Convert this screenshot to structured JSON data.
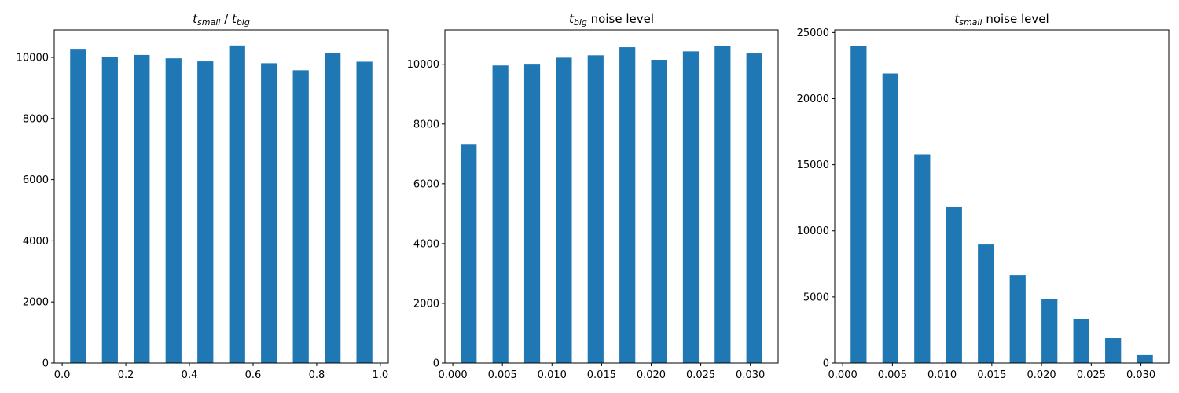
{
  "colors": {
    "bar": "#1f77b4"
  },
  "chart_data": [
    {
      "type": "bar",
      "title_parts": [
        {
          "text": "t",
          "italic": true
        },
        {
          "text": "small",
          "italic": true,
          "sub": true
        },
        {
          "text": " / "
        },
        {
          "text": "t",
          "italic": true
        },
        {
          "text": "big",
          "italic": true,
          "sub": true
        }
      ],
      "xlabel": "",
      "ylabel": "",
      "x": [
        0.05,
        0.15,
        0.25,
        0.35,
        0.45,
        0.55,
        0.65,
        0.75,
        0.85,
        0.95
      ],
      "values": [
        10280,
        10020,
        10080,
        9970,
        9870,
        10390,
        9810,
        9580,
        10150,
        9860
      ],
      "bar_width": 0.05,
      "xlim": [
        -0.025,
        1.025
      ],
      "ylim": [
        0,
        10900
      ],
      "xticks": [
        0.0,
        0.2,
        0.4,
        0.6,
        0.8,
        1.0
      ],
      "xtick_labels": [
        "0.0",
        "0.2",
        "0.4",
        "0.6",
        "0.8",
        "1.0"
      ],
      "yticks": [
        0,
        2000,
        4000,
        6000,
        8000,
        10000
      ],
      "ytick_labels": [
        "0",
        "2000",
        "4000",
        "6000",
        "8000",
        "10000"
      ],
      "grid": false
    },
    {
      "type": "bar",
      "title_parts": [
        {
          "text": "t",
          "italic": true
        },
        {
          "text": "big",
          "italic": true,
          "sub": true
        },
        {
          "text": " noise level"
        }
      ],
      "xlabel": "",
      "ylabel": "",
      "x": [
        0.0016,
        0.0048,
        0.008,
        0.0112,
        0.0144,
        0.0176,
        0.0208,
        0.024,
        0.0272,
        0.0304
      ],
      "values": [
        7330,
        9960,
        9990,
        10220,
        10300,
        10570,
        10150,
        10430,
        10610,
        10360
      ],
      "bar_width": 0.0016,
      "xlim": [
        -0.0008,
        0.0328
      ],
      "ylim": [
        0,
        11150
      ],
      "xticks": [
        0.0,
        0.005,
        0.01,
        0.015,
        0.02,
        0.025,
        0.03
      ],
      "xtick_labels": [
        "0.000",
        "0.005",
        "0.010",
        "0.015",
        "0.020",
        "0.025",
        "0.030"
      ],
      "yticks": [
        0,
        2000,
        4000,
        6000,
        8000,
        10000
      ],
      "ytick_labels": [
        "0",
        "2000",
        "4000",
        "6000",
        "8000",
        "10000"
      ],
      "grid": false
    },
    {
      "type": "bar",
      "title_parts": [
        {
          "text": "t",
          "italic": true
        },
        {
          "text": "small",
          "italic": true,
          "sub": true
        },
        {
          "text": " noise level"
        }
      ],
      "xlabel": "",
      "ylabel": "",
      "x": [
        0.0016,
        0.0048,
        0.008,
        0.0112,
        0.0144,
        0.0176,
        0.0208,
        0.024,
        0.0272,
        0.0304
      ],
      "values": [
        23990,
        21900,
        15780,
        11830,
        8970,
        6650,
        4870,
        3330,
        1900,
        600
      ],
      "bar_width": 0.0016,
      "xlim": [
        -0.0008,
        0.0328
      ],
      "ylim": [
        0,
        25200
      ],
      "xticks": [
        0.0,
        0.005,
        0.01,
        0.015,
        0.02,
        0.025,
        0.03
      ],
      "xtick_labels": [
        "0.000",
        "0.005",
        "0.010",
        "0.015",
        "0.020",
        "0.025",
        "0.030"
      ],
      "yticks": [
        0,
        5000,
        10000,
        15000,
        20000,
        25000
      ],
      "ytick_labels": [
        "0",
        "5000",
        "10000",
        "15000",
        "20000",
        "25000"
      ],
      "grid": false
    }
  ]
}
